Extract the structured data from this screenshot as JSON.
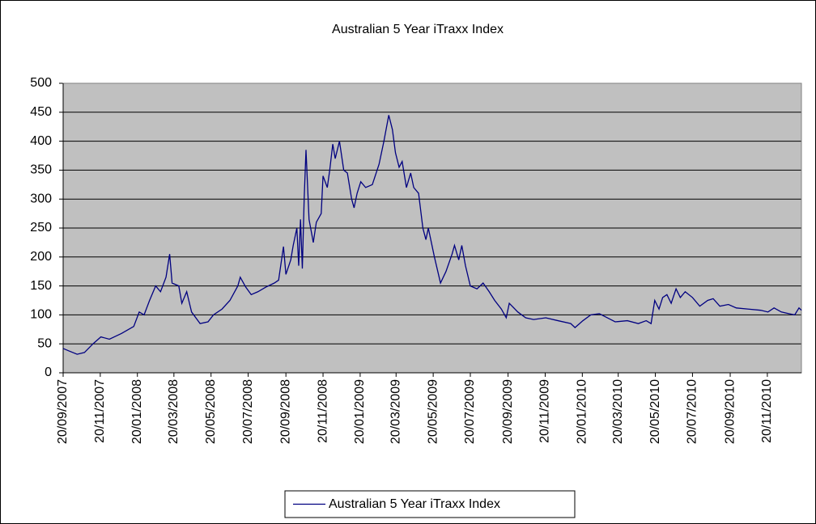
{
  "chart_data": {
    "type": "line",
    "title": "Australian 5 Year iTraxx Index",
    "x": [
      "20/09/2007",
      "29/09/2007",
      "13/10/2007",
      "25/10/2007",
      "08/11/2007",
      "21/11/2007",
      "05/12/2007",
      "25/12/2007",
      "14/01/2008",
      "23/01/2008",
      "31/01/2008",
      "09/02/2008",
      "19/02/2008",
      "27/02/2008",
      "07/03/2008",
      "13/03/2008",
      "17/03/2008",
      "28/03/2008",
      "02/04/2008",
      "10/04/2008",
      "18/04/2008",
      "02/05/2008",
      "15/05/2008",
      "24/05/2008",
      "07/06/2008",
      "20/06/2008",
      "03/07/2008",
      "07/07/2008",
      "16/07/2008",
      "25/07/2008",
      "05/08/2008",
      "18/08/2008",
      "01/09/2008",
      "08/09/2008",
      "16/09/2008",
      "20/09/2008",
      "28/09/2008",
      "02/10/2008",
      "08/10/2008",
      "11/10/2008",
      "14/10/2008",
      "17/10/2008",
      "20/10/2008",
      "23/10/2008",
      "28/10/2008",
      "04/11/2008",
      "09/11/2008",
      "17/11/2008",
      "20/11/2008",
      "27/11/2008",
      "01/12/2008",
      "06/12/2008",
      "10/12/2008",
      "17/12/2008",
      "24/12/2008",
      "30/12/2008",
      "06/01/2009",
      "10/01/2009",
      "15/01/2009",
      "21/01/2009",
      "29/01/2009",
      "09/02/2009",
      "20/02/2009",
      "28/02/2009",
      "08/03/2009",
      "14/03/2009",
      "19/03/2009",
      "25/03/2009",
      "30/03/2009",
      "06/04/2009",
      "13/04/2009",
      "18/04/2009",
      "26/04/2009",
      "03/05/2009",
      "08/05/2009",
      "12/05/2009",
      "22/05/2009",
      "01/06/2009",
      "10/06/2009",
      "20/06/2009",
      "24/06/2009",
      "01/07/2009",
      "06/07/2009",
      "12/07/2009",
      "20/07/2009",
      "31/07/2009",
      "10/08/2009",
      "20/08/2009",
      "29/08/2009",
      "09/09/2009",
      "17/09/2009",
      "22/09/2009",
      "06/10/2009",
      "19/10/2009",
      "01/11/2009",
      "21/11/2009",
      "11/12/2009",
      "01/01/2010",
      "08/01/2010",
      "21/01/2010",
      "03/02/2010",
      "17/02/2010",
      "02/03/2010",
      "15/03/2010",
      "04/04/2010",
      "22/04/2010",
      "05/05/2010",
      "13/05/2010",
      "19/05/2010",
      "26/05/2010",
      "01/06/2010",
      "08/06/2010",
      "15/06/2010",
      "23/06/2010",
      "30/06/2010",
      "08/07/2010",
      "20/07/2010",
      "01/08/2010",
      "14/08/2010",
      "23/08/2010",
      "03/09/2010",
      "17/09/2010",
      "30/09/2010",
      "20/10/2010",
      "09/11/2010",
      "21/11/2010",
      "01/12/2010",
      "13/12/2010",
      "26/12/2010",
      "04/01/2011",
      "11/01/2011",
      "15/01/2011"
    ],
    "series": [
      {
        "name": "Australian 5 Year iTraxx Index",
        "color": "#000080",
        "values": [
          42,
          38,
          32,
          35,
          50,
          62,
          58,
          68,
          80,
          105,
          100,
          125,
          150,
          140,
          165,
          205,
          155,
          150,
          120,
          140,
          105,
          85,
          88,
          100,
          110,
          125,
          150,
          165,
          148,
          135,
          140,
          148,
          155,
          160,
          218,
          170,
          195,
          220,
          250,
          185,
          265,
          180,
          300,
          385,
          265,
          225,
          260,
          275,
          340,
          320,
          350,
          395,
          370,
          400,
          350,
          345,
          300,
          285,
          310,
          330,
          320,
          325,
          360,
          400,
          445,
          420,
          380,
          355,
          365,
          320,
          345,
          320,
          310,
          250,
          230,
          250,
          200,
          155,
          175,
          205,
          220,
          195,
          220,
          185,
          150,
          145,
          155,
          140,
          125,
          110,
          95,
          120,
          105,
          95,
          92,
          95,
          90,
          85,
          78,
          90,
          100,
          102,
          95,
          88,
          90,
          85,
          90,
          85,
          125,
          110,
          130,
          135,
          120,
          145,
          130,
          140,
          130,
          115,
          125,
          128,
          115,
          118,
          112,
          110,
          108,
          105,
          112,
          105,
          102,
          100,
          112,
          108
        ]
      }
    ],
    "xlim": [
      "20/09/2007",
      "15/01/2011"
    ],
    "xticks": [
      "20/09/2007",
      "20/11/2007",
      "20/01/2008",
      "20/03/2008",
      "20/05/2008",
      "20/07/2008",
      "20/09/2008",
      "20/11/2008",
      "20/01/2009",
      "20/03/2009",
      "20/05/2009",
      "20/07/2009",
      "20/09/2009",
      "20/11/2009",
      "20/01/2010",
      "20/03/2010",
      "20/05/2010",
      "20/07/2010",
      "20/09/2010",
      "20/11/2010"
    ],
    "ylim": [
      0,
      500
    ],
    "yticks": [
      0,
      50,
      100,
      150,
      200,
      250,
      300,
      350,
      400,
      450,
      500
    ],
    "grid": true,
    "legend": "bottom"
  }
}
